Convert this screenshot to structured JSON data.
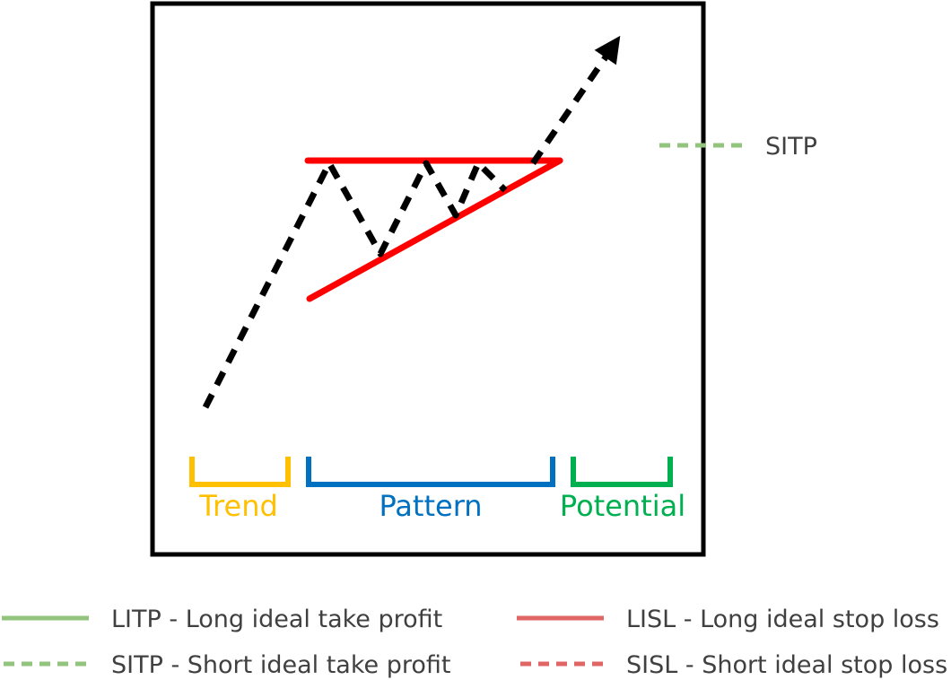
{
  "colors": {
    "frame": "#000000",
    "price_path": "#000000",
    "pattern_lines": "#ff0000",
    "trend": "#ffc000",
    "pattern": "#0070c0",
    "potential": "#00b050",
    "take_profit": "#93c47d",
    "stop_loss": "#e06666"
  },
  "sections": {
    "trend": "Trend",
    "pattern": "Pattern",
    "potential": "Potential"
  },
  "side_marker": {
    "label": "SITP",
    "line_style": "dashed",
    "color": "#93c47d"
  },
  "legend": [
    {
      "label": "LITP - Long ideal take profit",
      "line_style": "solid",
      "color": "#93c47d"
    },
    {
      "label": "LISL - Long ideal stop loss",
      "line_style": "solid",
      "color": "#e06666"
    },
    {
      "label": "SITP - Short ideal take profit",
      "line_style": "dashed",
      "color": "#93c47d"
    },
    {
      "label": "SISL - Short ideal stop loss",
      "line_style": "dashed",
      "color": "#e06666"
    }
  ]
}
